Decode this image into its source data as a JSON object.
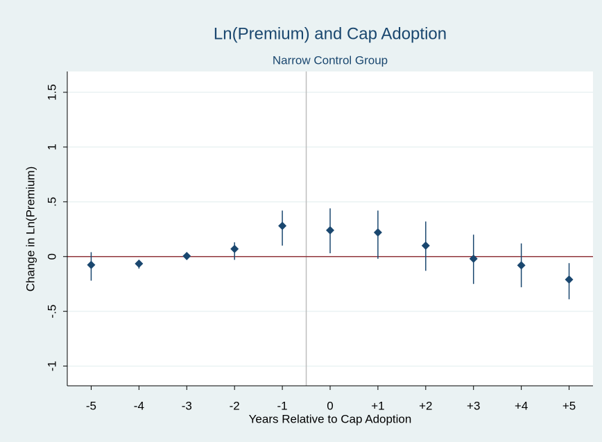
{
  "chart_data": {
    "type": "coefplot",
    "title": "Ln(Premium) and Cap Adoption",
    "subtitle": "Narrow Control Group",
    "xlabel": "Years Relative to Cap Adoption",
    "ylabel": "Change in Ln(Premium)",
    "x": [
      -5,
      -4,
      -3,
      -2,
      -1,
      0,
      1,
      2,
      3,
      4,
      5
    ],
    "series": [
      {
        "color": "#1a476f",
        "values": [
          -0.076,
          -0.065,
          0.005,
          0.07,
          0.28,
          0.24,
          0.22,
          0.1,
          -0.02,
          -0.08,
          -0.21
        ],
        "lower": [
          -0.22,
          -0.11,
          -0.01,
          -0.03,
          0.1,
          0.03,
          -0.02,
          -0.13,
          -0.25,
          -0.28,
          -0.39
        ],
        "upper": [
          0.04,
          -0.03,
          0.02,
          0.13,
          0.42,
          0.44,
          0.42,
          0.32,
          0.2,
          0.12,
          -0.06
        ]
      }
    ],
    "xlim": [
      -5.5,
      5.5
    ],
    "xticks": [
      -5,
      -4,
      -3,
      -2,
      -1,
      0,
      {
        "value": 1,
        "label": "+1"
      },
      {
        "value": 2,
        "label": "+2"
      },
      {
        "value": 3,
        "label": "+3"
      },
      {
        "value": 4,
        "label": "+4"
      },
      {
        "value": 5,
        "label": "+5"
      }
    ],
    "ylim": [
      -1.18,
      1.69
    ],
    "yticks": [
      -1,
      {
        "value": -0.5,
        "label": "-.5"
      },
      0,
      {
        "value": 0.5,
        "label": ".5"
      },
      1,
      1.5
    ],
    "grid": true,
    "hline": {
      "value": 0,
      "color": "#90353b"
    },
    "vline": {
      "value": -0.5,
      "color": "#bdbdbd"
    }
  }
}
